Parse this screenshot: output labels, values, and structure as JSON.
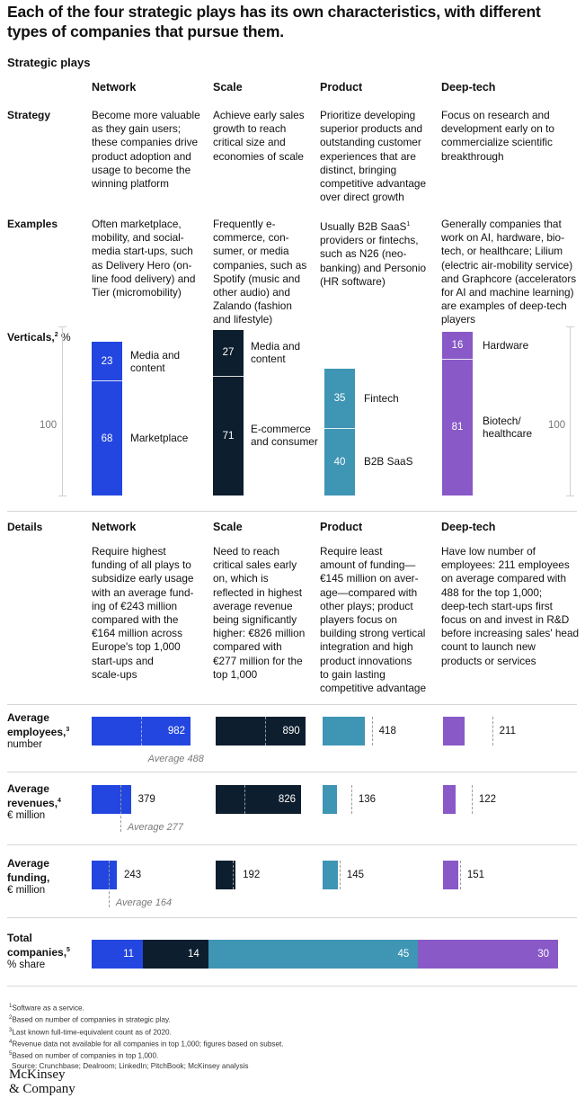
{
  "title": "Each of the four strategic plays has its own characteristics, with different types of companies that pursue them.",
  "section_title": "Strategic plays",
  "columns": [
    "Network",
    "Scale",
    "Product",
    "Deep-tech"
  ],
  "colors": {
    "network": "#2346e0",
    "scale": "#0d1e2e",
    "product": "#3f95b4",
    "deeptech": "#8859c7"
  },
  "rows": {
    "strategy": {
      "label": "Strategy",
      "cells": [
        [
          "Become more valuable",
          "as they gain users;",
          "these companies drive",
          "product adoption and",
          "usage to become the",
          "winning platform"
        ],
        [
          "Achieve early sales",
          "growth to reach",
          "critical size and",
          "economies of scale"
        ],
        [
          "Prioritize developing",
          "superior products and",
          "outstanding customer",
          "experiences that are",
          "distinct, bringing",
          "competitive advantage",
          "over direct growth"
        ],
        [
          "Focus on research and",
          "development early on to",
          "commercialize scientific",
          "breakthrough"
        ]
      ]
    },
    "examples": {
      "label": "Examples",
      "cells": [
        [
          "Often marketplace,",
          "mobility, and social-",
          "media start-ups, such",
          "as Delivery Hero (on-",
          "line food delivery) and",
          "Tier (micromobility)"
        ],
        [
          "Frequently e-",
          "commerce, con-",
          "sumer, or media",
          "companies, such as",
          "Spotify (music and",
          "other audio) and",
          "Zalando (fashion",
          "and lifestyle)"
        ],
        [
          "Usually B2B SaaS",
          "providers or fintechs,",
          "such as N26 (neo-",
          "banking) and Personio",
          "(HR software)"
        ],
        [
          "Generally companies that",
          "work on AI, hardware, bio-",
          "tech, or healthcare; Lilium",
          "(electric air-mobility service)",
          "and Graphcore (accelerators",
          "for AI and machine learning)",
          "are examples of deep-tech",
          "players"
        ]
      ]
    },
    "details": {
      "label": "Details",
      "cells": [
        [
          "Require highest",
          "funding of all plays to",
          "subsidize early usage",
          "with an average fund-",
          "ing of €243 million",
          "compared with the",
          "€164 million across",
          "Europe's top 1,000",
          "start-ups and",
          "scale-ups"
        ],
        [
          "Need to reach",
          "critical sales early",
          "on, which is",
          "reflected in highest",
          "average revenue",
          "being significantly",
          "higher: €826 million",
          "compared with",
          "€277 million for the",
          "top 1,000"
        ],
        [
          "Require least",
          "amount of funding—",
          "€145 million on aver-",
          "age—compared with",
          "other plays; product",
          "players focus on",
          "building strong vertical",
          "integration and high",
          "product innovations",
          "to gain lasting",
          "competitive advantage"
        ],
        [
          "Have low number of",
          "employees: 211 employees",
          "on average compared with",
          "488 for the top 1,000;",
          "deep-tech start-ups first",
          "focus on and invest in R&D",
          "before increasing sales' head",
          "count to launch new",
          "products or services"
        ]
      ]
    }
  },
  "verticals": {
    "label": "Verticals,",
    "unit": "%",
    "scale_label": "100",
    "sup": "2"
  },
  "metrics": {
    "employees": {
      "label_1": "Average",
      "label_2": "employees,",
      "sup": "3",
      "unit": "number"
    },
    "revenues": {
      "label_1": "Average",
      "label_2": "revenues,",
      "sup": "4",
      "unit": "€ million"
    },
    "funding": {
      "label_1": "Average",
      "label_2": "funding,",
      "sup": "",
      "unit": "€ million"
    },
    "total": {
      "label_1": "Total",
      "label_2": "companies,",
      "sup": "5",
      "unit": "% share"
    }
  },
  "chart_data": [
    {
      "type": "bar",
      "title": "Verticals",
      "unit": "%",
      "stacked": true,
      "series": [
        {
          "name": "Network",
          "segments": [
            {
              "label": "Media and content",
              "value": 23
            },
            {
              "label": "Marketplace",
              "value": 68
            }
          ]
        },
        {
          "name": "Scale",
          "segments": [
            {
              "label": "Media and content",
              "value": 27
            },
            {
              "label": "E-commerce and consumer",
              "value": 71
            }
          ]
        },
        {
          "name": "Product",
          "segments": [
            {
              "label": "Fintech",
              "value": 35
            },
            {
              "label": "B2B SaaS",
              "value": 40
            }
          ]
        },
        {
          "name": "Deep-tech",
          "segments": [
            {
              "label": "Hardware",
              "value": 16
            },
            {
              "label": "Biotech/ healthcare",
              "value": 81
            }
          ]
        }
      ]
    },
    {
      "type": "bar",
      "title": "Average employees",
      "unit": "number",
      "categories": [
        "Network",
        "Scale",
        "Product",
        "Deep-tech"
      ],
      "values": [
        982,
        890,
        418,
        211
      ],
      "average": 488,
      "average_label": "Average 488"
    },
    {
      "type": "bar",
      "title": "Average revenues",
      "unit": "€ million",
      "categories": [
        "Network",
        "Scale",
        "Product",
        "Deep-tech"
      ],
      "values": [
        379,
        826,
        136,
        122
      ],
      "average": 277,
      "average_label": "Average 277"
    },
    {
      "type": "bar",
      "title": "Average funding",
      "unit": "€ million",
      "categories": [
        "Network",
        "Scale",
        "Product",
        "Deep-tech"
      ],
      "values": [
        243,
        192,
        145,
        151
      ],
      "average": 164,
      "average_label": "Average 164"
    },
    {
      "type": "bar",
      "title": "Total companies",
      "unit": "% share",
      "stacked": true,
      "categories": [
        "Network",
        "Scale",
        "Product",
        "Deep-tech"
      ],
      "values": [
        11,
        14,
        45,
        30
      ]
    }
  ],
  "footnotes": [
    {
      "sup": "1",
      "text": "Software as a service."
    },
    {
      "sup": "2",
      "text": "Based on number of companies in strategic play."
    },
    {
      "sup": "3",
      "text": "Last known full-time-equivalent count as of 2020."
    },
    {
      "sup": "4",
      "text": "Revenue data not available for all companies in top 1,000; figures based on subset."
    },
    {
      "sup": "5",
      "text": "Based on number of companies in top 1,000."
    },
    {
      "sup": "",
      "text": "Source: Crunchbase; Dealroom; LinkedIn; PitchBook; McKinsey analysis"
    }
  ],
  "logo": {
    "line1": "McKinsey",
    "line2": "& Company"
  }
}
